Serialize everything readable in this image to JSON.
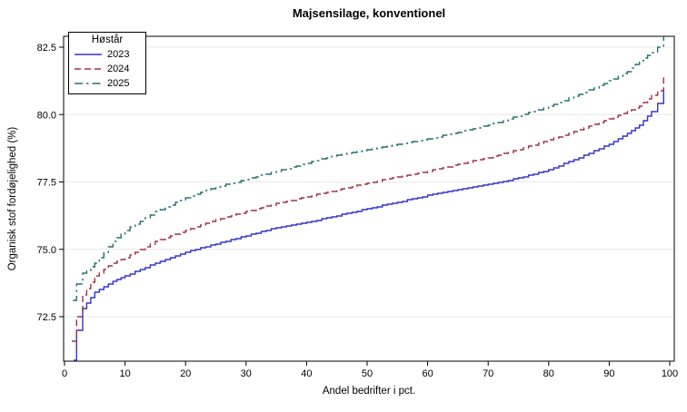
{
  "figure": {
    "background": "#ffffff",
    "border_color": "#000000"
  },
  "chart_data": {
    "type": "line",
    "title": "Majsensilage, konventionel",
    "xlabel": "Andel bedrifter i pct.",
    "ylabel": "Organisk stof fordøjelighed (%)",
    "xlim": [
      -0.2,
      100.8
    ],
    "ylim": [
      70.85,
      82.95
    ],
    "xticks": [
      0,
      10,
      20,
      30,
      40,
      50,
      60,
      70,
      80,
      90,
      100
    ],
    "yticks": [
      72.5,
      75.0,
      77.5,
      80.0,
      82.5
    ],
    "grid": "horizontal-only",
    "grid_color": "#e8e8e8",
    "axis_color": "#000000",
    "legend": {
      "title": "Høstår",
      "position": "top-left-inside"
    },
    "series": [
      {
        "name": "2023",
        "color": "#3333CC",
        "dash": "solid",
        "points": [
          [
            1.5,
            70.9
          ],
          [
            2,
            72.0
          ],
          [
            3,
            72.8
          ],
          [
            5,
            73.4
          ],
          [
            8,
            73.8
          ],
          [
            10,
            74.0
          ],
          [
            15,
            74.5
          ],
          [
            20,
            74.9
          ],
          [
            25,
            75.2
          ],
          [
            30,
            75.5
          ],
          [
            35,
            75.8
          ],
          [
            40,
            76.0
          ],
          [
            45,
            76.25
          ],
          [
            50,
            76.5
          ],
          [
            55,
            76.75
          ],
          [
            60,
            77.0
          ],
          [
            65,
            77.2
          ],
          [
            70,
            77.4
          ],
          [
            75,
            77.65
          ],
          [
            80,
            77.95
          ],
          [
            85,
            78.4
          ],
          [
            90,
            78.9
          ],
          [
            93,
            79.3
          ],
          [
            95,
            79.6
          ],
          [
            97,
            80.1
          ],
          [
            98,
            80.4
          ],
          [
            99,
            81.0
          ]
        ]
      },
      {
        "name": "2024",
        "color": "#A03246",
        "dash": "dashed",
        "points": [
          [
            1.2,
            71.6
          ],
          [
            2,
            72.5
          ],
          [
            3,
            73.3
          ],
          [
            5,
            74.0
          ],
          [
            8,
            74.5
          ],
          [
            10,
            74.7
          ],
          [
            15,
            75.3
          ],
          [
            20,
            75.7
          ],
          [
            25,
            76.1
          ],
          [
            30,
            76.4
          ],
          [
            35,
            76.7
          ],
          [
            40,
            76.95
          ],
          [
            45,
            77.2
          ],
          [
            50,
            77.45
          ],
          [
            55,
            77.7
          ],
          [
            60,
            77.9
          ],
          [
            65,
            78.15
          ],
          [
            70,
            78.4
          ],
          [
            75,
            78.7
          ],
          [
            80,
            79.05
          ],
          [
            85,
            79.45
          ],
          [
            90,
            79.85
          ],
          [
            93,
            80.1
          ],
          [
            95,
            80.3
          ],
          [
            97,
            80.7
          ],
          [
            98,
            80.9
          ],
          [
            99,
            81.4
          ]
        ]
      },
      {
        "name": "2025",
        "color": "#20726E",
        "dash": "dash-dot",
        "points": [
          [
            1.4,
            73.1
          ],
          [
            2,
            73.7
          ],
          [
            3,
            74.1
          ],
          [
            5,
            74.5
          ],
          [
            8,
            75.3
          ],
          [
            10,
            75.7
          ],
          [
            15,
            76.4
          ],
          [
            20,
            76.9
          ],
          [
            25,
            77.3
          ],
          [
            30,
            77.6
          ],
          [
            35,
            77.9
          ],
          [
            40,
            78.2
          ],
          [
            45,
            78.5
          ],
          [
            50,
            78.7
          ],
          [
            55,
            78.9
          ],
          [
            60,
            79.1
          ],
          [
            65,
            79.35
          ],
          [
            70,
            79.6
          ],
          [
            75,
            79.95
          ],
          [
            80,
            80.3
          ],
          [
            85,
            80.75
          ],
          [
            90,
            81.25
          ],
          [
            93,
            81.6
          ],
          [
            95,
            82.0
          ],
          [
            97,
            82.3
          ],
          [
            98,
            82.5
          ],
          [
            99,
            82.9
          ]
        ]
      }
    ]
  }
}
